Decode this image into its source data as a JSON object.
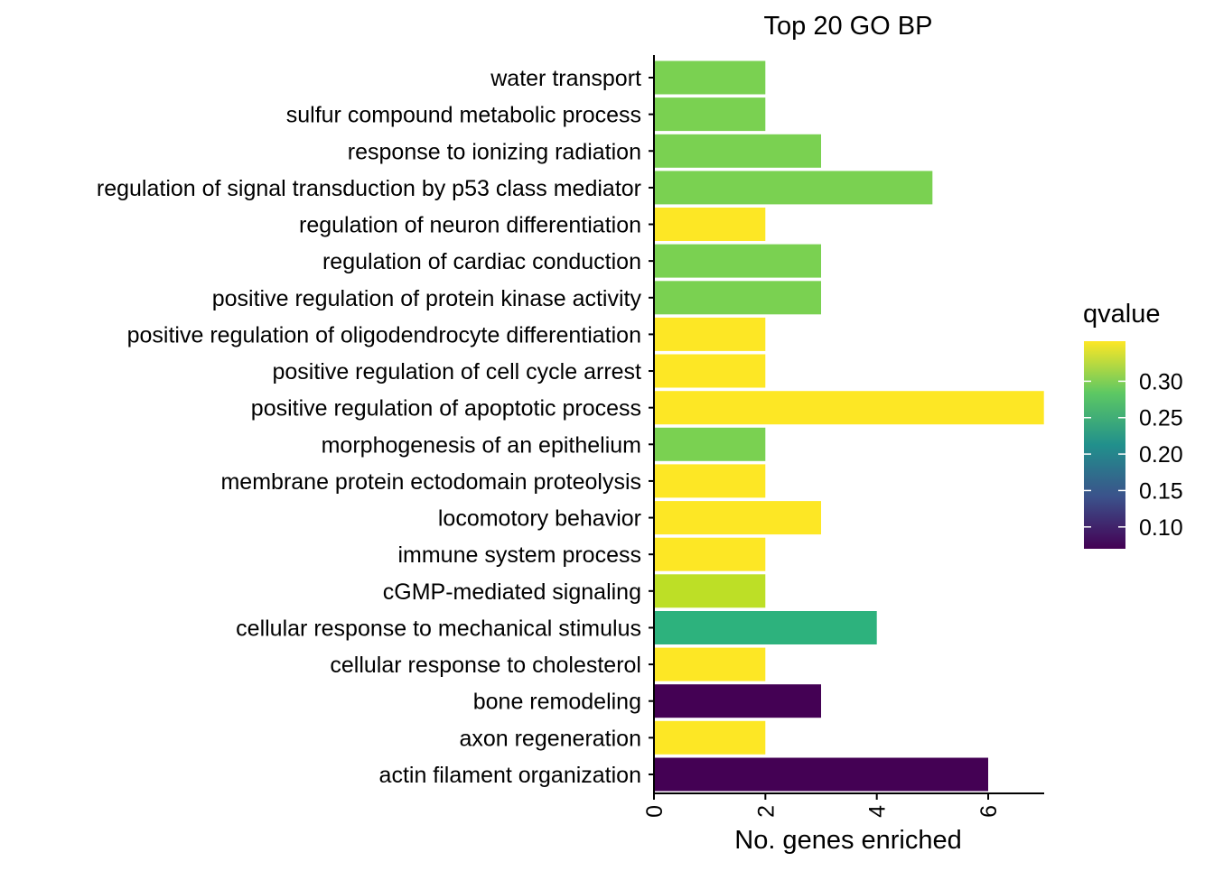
{
  "chart_data": {
    "type": "bar",
    "orientation": "horizontal",
    "title": "Top 20 GO BP",
    "xlabel": "No. genes enriched",
    "ylabel": "",
    "xlim": [
      0,
      7
    ],
    "x_ticks": [
      0,
      2,
      4,
      6
    ],
    "x_tick_labels": [
      "0",
      "2",
      "4",
      "6"
    ],
    "grid": false,
    "categories": [
      "water transport",
      "sulfur compound metabolic process",
      "response to ionizing radiation",
      "regulation of signal transduction by p53 class mediator",
      "regulation of neuron differentiation",
      "regulation of cardiac conduction",
      "positive regulation of protein kinase activity",
      "positive regulation of oligodendrocyte differentiation",
      "positive regulation of cell cycle arrest",
      "positive regulation of apoptotic process",
      "morphogenesis of an epithelium",
      "membrane protein ectodomain proteolysis",
      "locomotory behavior",
      "immune system process",
      "cGMP-mediated signaling",
      "cellular response to mechanical stimulus",
      "cellular response to cholesterol",
      "bone remodeling",
      "axon regeneration",
      "actin filament organization"
    ],
    "values": [
      2,
      2,
      3,
      5,
      2,
      3,
      3,
      2,
      2,
      7,
      2,
      2,
      3,
      2,
      2,
      4,
      2,
      3,
      2,
      6
    ],
    "qvalues": [
      0.305,
      0.305,
      0.305,
      0.305,
      0.355,
      0.305,
      0.305,
      0.355,
      0.355,
      0.355,
      0.31,
      0.355,
      0.355,
      0.355,
      0.335,
      0.24,
      0.355,
      0.07,
      0.355,
      0.07
    ],
    "bar_colors": [
      "#7AD151",
      "#7AD151",
      "#7AD151",
      "#7AD151",
      "#FDE725",
      "#7AD151",
      "#7AD151",
      "#FDE725",
      "#FDE725",
      "#FDE725",
      "#7AD151",
      "#FDE725",
      "#FDE725",
      "#FDE725",
      "#BDDF26",
      "#2DB27D",
      "#FDE725",
      "#440154",
      "#FDE725",
      "#440154"
    ],
    "legend": {
      "title": "qvalue",
      "position": "right",
      "range": [
        0.07,
        0.355
      ],
      "ticks": [
        0.1,
        0.15,
        0.2,
        0.25,
        0.3
      ],
      "tick_labels": [
        "0.10",
        "0.15",
        "0.20",
        "0.25",
        "0.30"
      ],
      "colormap": [
        "#440154",
        "#3B528B",
        "#21908C",
        "#5DC863",
        "#FDE725"
      ]
    }
  }
}
